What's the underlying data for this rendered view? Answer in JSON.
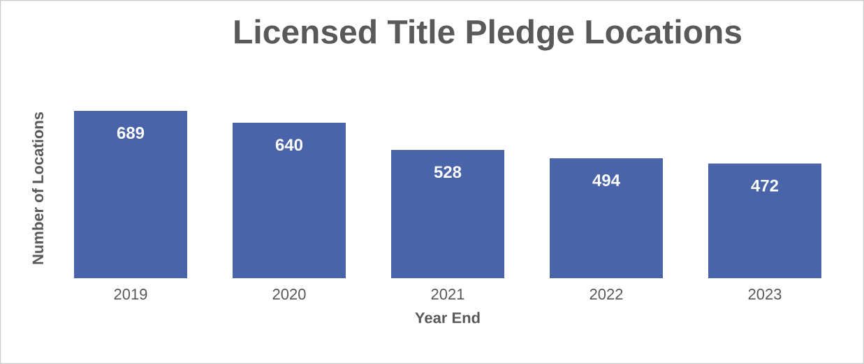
{
  "chart_data": {
    "type": "bar",
    "title": "Licensed Title Pledge Locations",
    "xlabel": "Year End",
    "ylabel": "Number of Locations",
    "categories": [
      "2019",
      "2020",
      "2021",
      "2022",
      "2023"
    ],
    "values": [
      689,
      640,
      528,
      494,
      472
    ],
    "color": "#4a64aa",
    "data_labels": true
  }
}
